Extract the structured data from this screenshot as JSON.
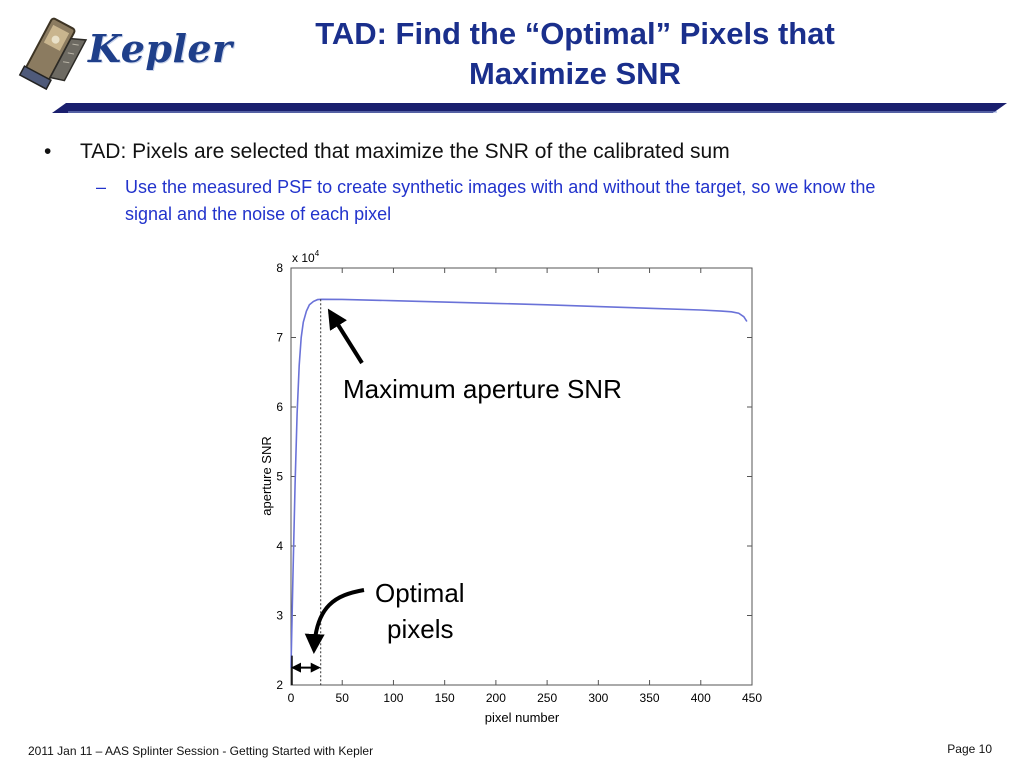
{
  "header": {
    "logo_text": "Kepler",
    "title_line1": "TAD: Find the “Optimal” Pixels that",
    "title_line2": "Maximize SNR"
  },
  "content": {
    "bullet_marker": "•",
    "bullet_text": "TAD: Pixels are selected that maximize the SNR of the calibrated sum",
    "sub_marker": "–",
    "sub_text": "Use the measured PSF to create synthetic images with and without the target, so we know the signal and the noise of each pixel"
  },
  "chart_data": {
    "type": "line",
    "xlabel": "pixel number",
    "ylabel": "aperture SNR",
    "exponent_label": "x 10",
    "exponent_power": "4",
    "xlim": [
      0,
      450
    ],
    "ylim": [
      2,
      8
    ],
    "xticks": [
      0,
      50,
      100,
      150,
      200,
      250,
      300,
      350,
      400,
      450
    ],
    "yticks": [
      2,
      3,
      4,
      5,
      6,
      7,
      8
    ],
    "series": [
      {
        "color": "#6a72d8",
        "x": [
          0,
          2,
          4,
          6,
          8,
          10,
          12,
          15,
          18,
          22,
          26,
          30,
          50,
          100,
          150,
          200,
          250,
          300,
          350,
          400,
          420,
          430,
          437,
          442,
          445
        ],
        "y": [
          2.25,
          3.6,
          4.9,
          5.9,
          6.6,
          7.0,
          7.22,
          7.38,
          7.47,
          7.52,
          7.545,
          7.55,
          7.548,
          7.53,
          7.51,
          7.49,
          7.47,
          7.445,
          7.42,
          7.395,
          7.38,
          7.37,
          7.35,
          7.3,
          7.23
        ]
      }
    ],
    "optimal_x": 29,
    "annotations": [
      {
        "text": "Maximum aperture SNR"
      },
      {
        "text_line1": "Optimal",
        "text_line2": "pixels"
      }
    ]
  },
  "footer": {
    "left": "2011 Jan 11 – AAS Splinter Session - Getting Started with Kepler",
    "right": "Page 10"
  }
}
